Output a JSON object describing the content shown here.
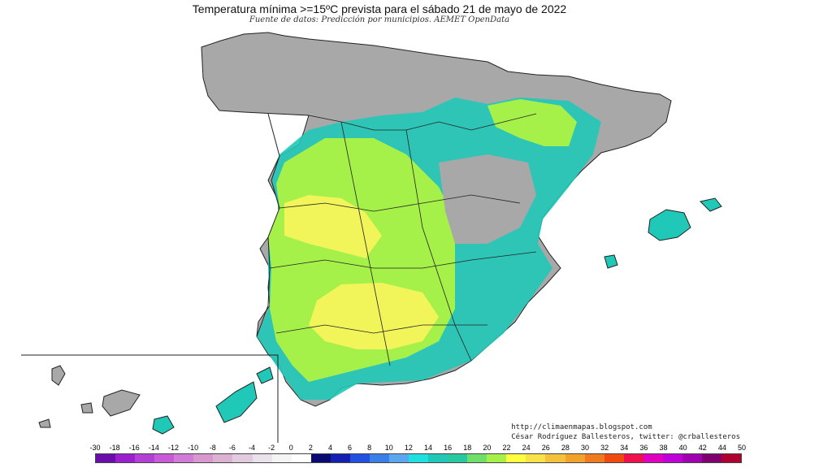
{
  "header": {
    "title": "Temperatura mínima >=15ºC prevista para el sábado 21 de mayo de 2022",
    "subtitle": "Fuente de datos: Predicción por municipios. AEMET OpenData"
  },
  "credits": {
    "blog": "http://climaenmapas.blogspot.com",
    "author": "César Rodríguez Ballesteros, twitter: @crballesteros"
  },
  "legend": {
    "labels": [
      "-30",
      "-18",
      "-16",
      "-14",
      "-12",
      "-10",
      "-8",
      "-6",
      "-4",
      "-2",
      "0",
      "2",
      "4",
      "6",
      "8",
      "10",
      "12",
      "14",
      "16",
      "18",
      "20",
      "22",
      "24",
      "26",
      "28",
      "30",
      "32",
      "34",
      "36",
      "38",
      "40",
      "42",
      "44",
      "50"
    ],
    "colors": [
      "#6a0dad",
      "#9b1fcf",
      "#b33fd6",
      "#c85ad8",
      "#d27ad8",
      "#d897cf",
      "#dcb2d2",
      "#e2cbdf",
      "#e9e1ec",
      "#f4f4f4",
      "#ffffff",
      "#0a0a70",
      "#1420b0",
      "#2250e0",
      "#3a7fe8",
      "#5aa7f0",
      "#1fe0e0",
      "#20c8b8",
      "#28c8a0",
      "#6ee06a",
      "#a6f04a",
      "#ffff40",
      "#f7e24a",
      "#f4c23a",
      "#f2a22a",
      "#f07a20",
      "#f04a10",
      "#f01050",
      "#e000c0",
      "#c000d8",
      "#a000b0",
      "#800070",
      "#b00030"
    ],
    "marker_label": "16"
  },
  "map": {
    "regions": [
      "Península",
      "Baleares",
      "Canarias"
    ],
    "colors": {
      "below_threshold": "#a8a8a8",
      "band_14_16": "#20c8b8",
      "band_18_20": "#a6f04a",
      "band_20_22": "#f2f55a",
      "border": "#222222"
    }
  }
}
